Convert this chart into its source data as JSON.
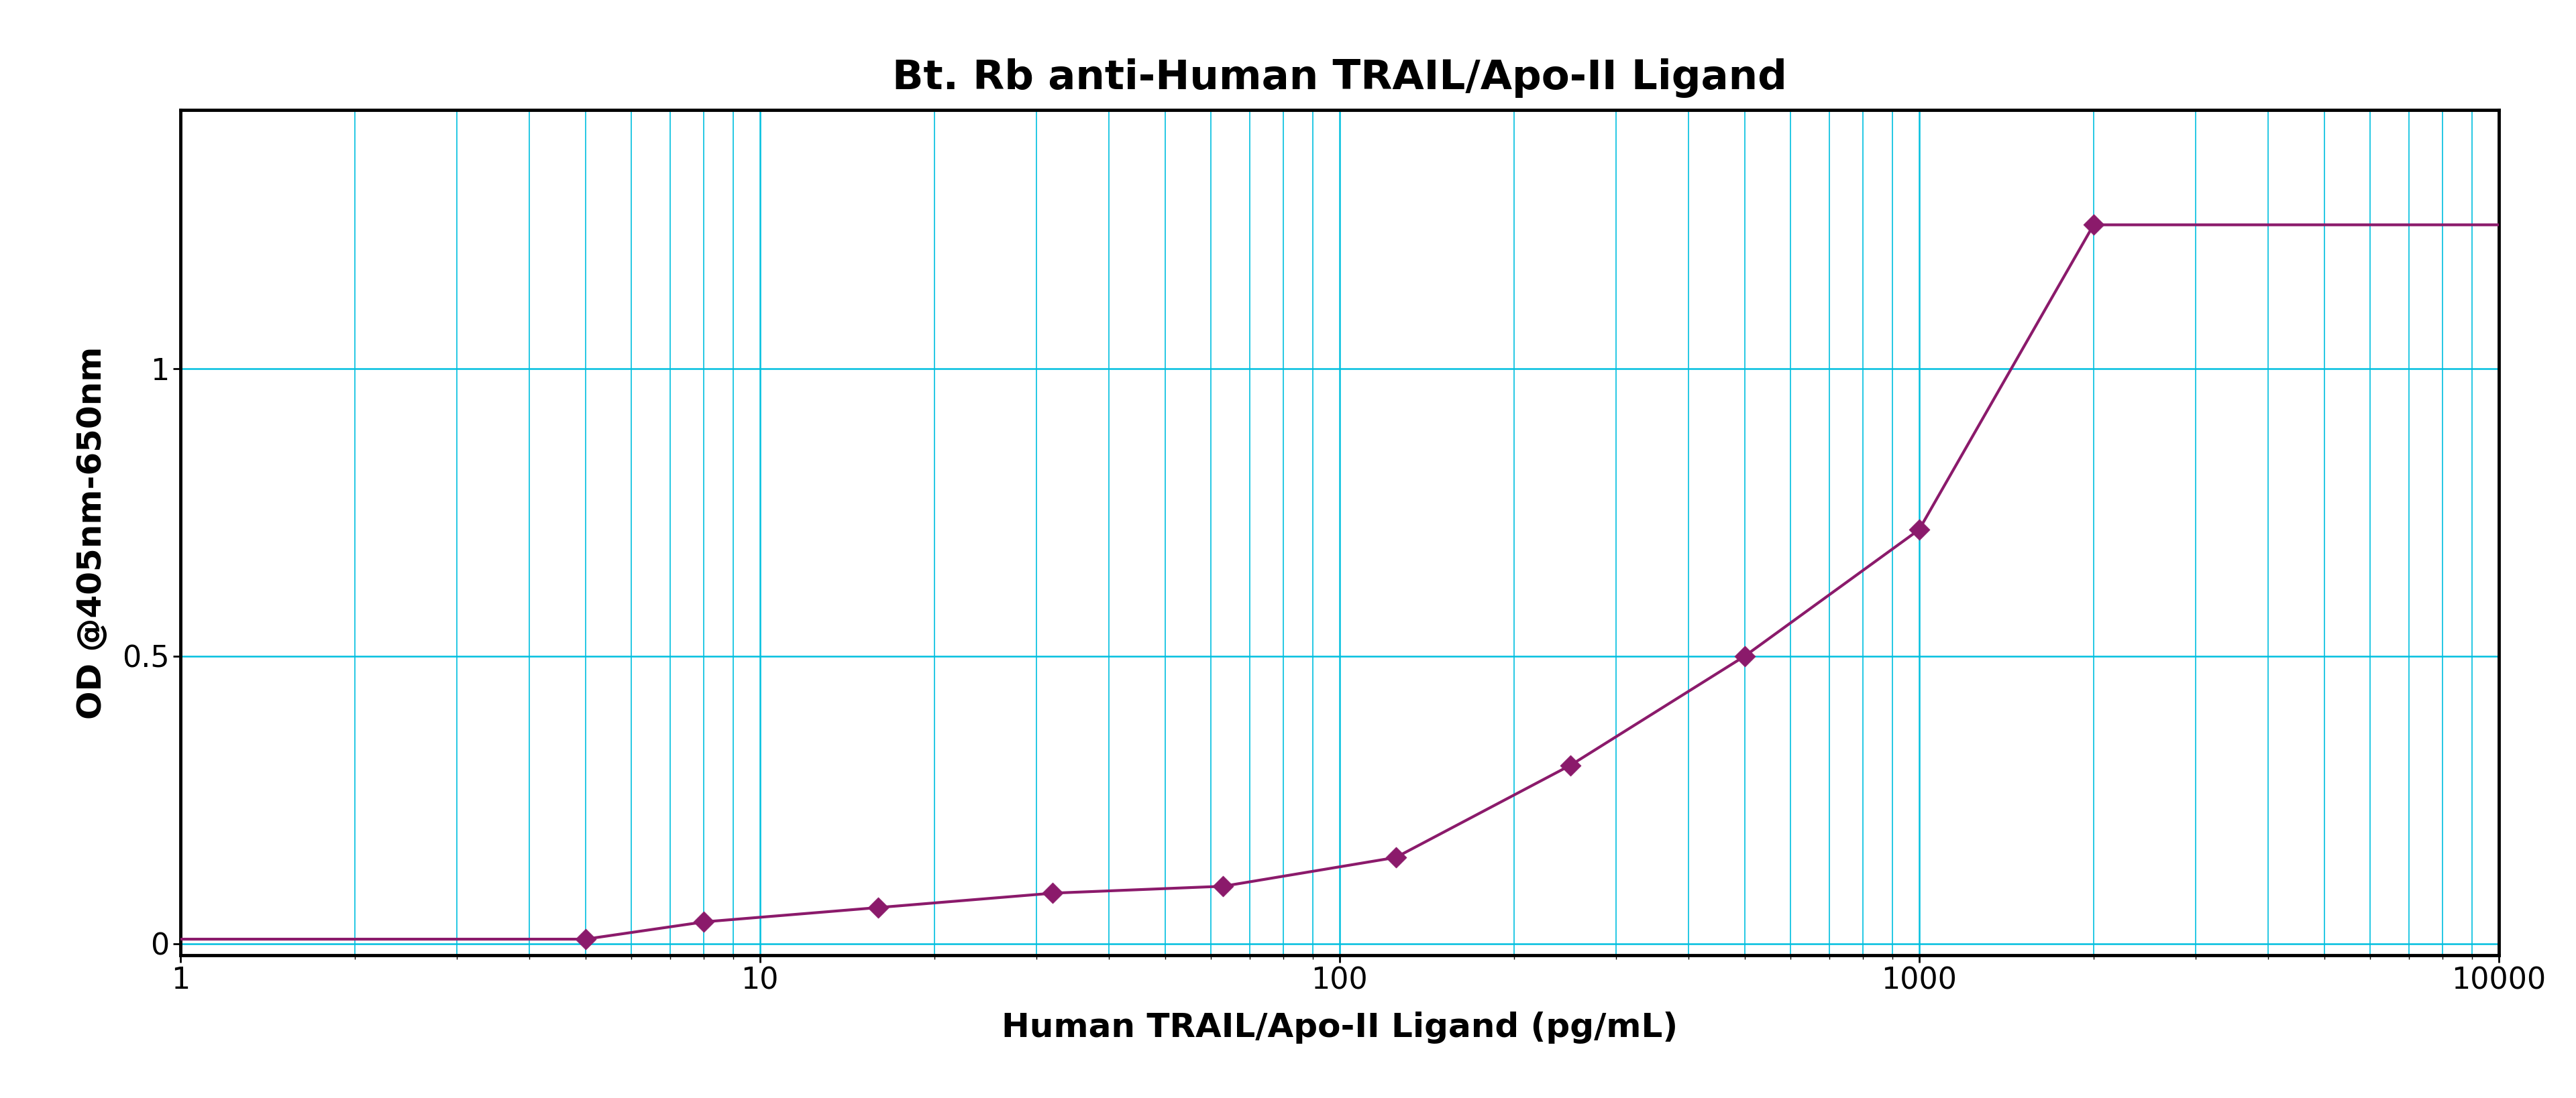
{
  "title": "Bt. Rb anti-Human TRAIL/Apo-II Ligand",
  "xlabel": "Human TRAIL/Apo-II Ligand (pg/mL)",
  "ylabel": "OD @405nm-650nm",
  "x_data": [
    5,
    8,
    16,
    32,
    63,
    125,
    250,
    500,
    1000,
    2000
  ],
  "y_data": [
    0.008,
    0.038,
    0.063,
    0.088,
    0.1,
    0.15,
    0.31,
    0.5,
    0.72,
    1.25
  ],
  "xlim_log": [
    0,
    4
  ],
  "ylim": [
    -0.02,
    1.45
  ],
  "curve_color": "#8B1A6B",
  "grid_color": "#00BFDF",
  "bg_color": "#FFFFFF",
  "spine_color": "#000000",
  "title_fontsize": 44,
  "label_fontsize": 36,
  "tick_fontsize": 32,
  "yticks": [
    0,
    0.5,
    1.0
  ],
  "ytick_labels": [
    "0",
    "0.5",
    "1"
  ],
  "xticks": [
    1,
    10,
    100,
    1000,
    10000
  ],
  "xtick_labels": [
    "1",
    "10",
    "100",
    "1000",
    "10000"
  ]
}
